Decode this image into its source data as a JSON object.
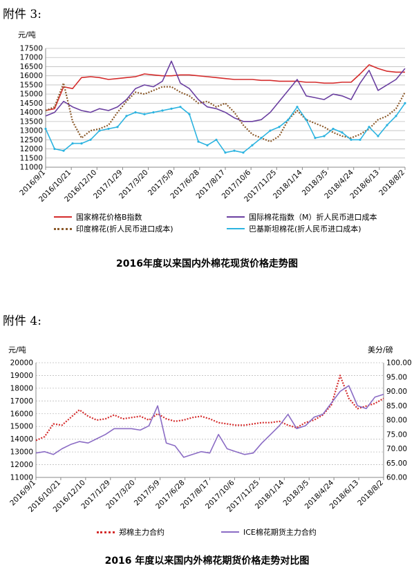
{
  "page": {
    "heading1": "附件 3:",
    "heading2": "附件 4:"
  },
  "chart_data": [
    {
      "type": "line",
      "title": "2016年度以来国内外棉花现货价格走势图",
      "ylabel": "元/吨",
      "ylim": [
        11000,
        17500
      ],
      "yticks": [
        11000,
        11500,
        12000,
        12500,
        13000,
        13500,
        14000,
        14500,
        15000,
        15500,
        16000,
        16500,
        17000,
        17500
      ],
      "x_ticks": [
        "2016/9/1",
        "2016/10/21",
        "2016/12/10",
        "2017/1/29",
        "2017/3/20",
        "2017/5/9",
        "2017/6/28",
        "2017/8/17",
        "2017/10/6",
        "2017/11/25",
        "2018/1/14",
        "2018/3/5",
        "2018/4/24",
        "2018/6/13",
        "2018/8/2"
      ],
      "grid": true,
      "legend_position": "bottom",
      "series": [
        {
          "name": "国家棉花价格B指数",
          "color": "#d42a2a",
          "style": "solid",
          "values": [
            14100,
            14200,
            15400,
            15300,
            15900,
            15950,
            15900,
            15800,
            15850,
            15900,
            15950,
            16100,
            16050,
            16000,
            16000,
            16050,
            16050,
            16000,
            15950,
            15900,
            15850,
            15800,
            15800,
            15800,
            15750,
            15750,
            15700,
            15700,
            15700,
            15650,
            15650,
            15600,
            15600,
            15650,
            15650,
            16100,
            16600,
            16400,
            16250,
            16200,
            16200
          ]
        },
        {
          "name": "国际棉花指数（M）折人民币进口成本",
          "color": "#6a3fa0",
          "style": "solid",
          "values": [
            13800,
            14000,
            14600,
            14300,
            14100,
            14000,
            14200,
            14100,
            14300,
            14700,
            15300,
            15500,
            15400,
            15700,
            16800,
            15600,
            15300,
            14700,
            14300,
            14200,
            14000,
            13700,
            13500,
            13500,
            13600,
            14000,
            14600,
            15200,
            15800,
            14900,
            14800,
            14700,
            15000,
            14900,
            14700,
            15600,
            16300,
            15200,
            15500,
            15800,
            16400
          ]
        },
        {
          "name": "印度棉花(折人民币进口成本)",
          "color": "#8b5a2b",
          "style": "dotted",
          "values": [
            14100,
            14300,
            15600,
            13500,
            12600,
            13000,
            13100,
            13300,
            14000,
            14600,
            15100,
            15000,
            15200,
            15400,
            15400,
            15100,
            14900,
            14500,
            14600,
            14300,
            14500,
            14000,
            13300,
            12800,
            12600,
            12400,
            12700,
            13600,
            14100,
            13600,
            13400,
            13200,
            12900,
            12700,
            12600,
            12800,
            13100,
            13600,
            13800,
            14200,
            15100
          ]
        },
        {
          "name": "巴基斯坦棉花(折人民币进口成本)",
          "color": "#2bb3e0",
          "style": "solid-marker",
          "values": [
            13100,
            12000,
            11900,
            12300,
            12300,
            12500,
            13000,
            13100,
            13200,
            13800,
            14000,
            13900,
            14000,
            14100,
            14200,
            14300,
            13900,
            12400,
            12200,
            12500,
            11800,
            11900,
            11800,
            12200,
            12600,
            13000,
            13200,
            13600,
            14300,
            13600,
            12600,
            12700,
            13100,
            12900,
            12500,
            12500,
            13200,
            12700,
            13300,
            13800,
            14500
          ]
        }
      ]
    },
    {
      "type": "line",
      "title": "2016 年度以来国内外棉花期货价格走势对比图",
      "ylabel": "元/吨",
      "y2label": "美分/磅",
      "ylim": [
        11000,
        20000
      ],
      "y2lim": [
        60,
        100
      ],
      "yticks": [
        11000,
        12000,
        13000,
        14000,
        15000,
        16000,
        17000,
        18000,
        19000,
        20000
      ],
      "y2ticks": [
        "60.00",
        "65.00",
        "70.00",
        "75.00",
        "80.00",
        "85.00",
        "90.00",
        "95.00",
        "100.00"
      ],
      "x_ticks": [
        "2016/9/1",
        "2016/10/21",
        "2016/12/10",
        "2017/1/29",
        "2017/3/20",
        "2017/5/9",
        "2017/6/28",
        "2017/8/17",
        "2017/10/6",
        "2017/11/25",
        "2018/1/14",
        "2018/3/5",
        "2018/4/24",
        "2018/6/13",
        "2018/8/2"
      ],
      "grid": true,
      "legend_position": "bottom",
      "series": [
        {
          "name": "郑棉主力合约",
          "axis": "left",
          "color": "#d42a2a",
          "style": "dotted",
          "values": [
            13900,
            14200,
            15200,
            15100,
            15700,
            16300,
            15800,
            15500,
            15600,
            15900,
            15600,
            15700,
            15800,
            15500,
            16000,
            15600,
            15400,
            15500,
            15700,
            15800,
            15600,
            15300,
            15200,
            15100,
            15100,
            15200,
            15300,
            15300,
            15400,
            15100,
            14900,
            15300,
            15500,
            15900,
            16700,
            19000,
            17200,
            16400,
            16600,
            16800,
            17200
          ]
        },
        {
          "name": "ICE棉花期货主力合约",
          "axis": "right",
          "color": "#8a6bc4",
          "style": "solid",
          "values": [
            68.5,
            69.0,
            68.0,
            70.0,
            71.5,
            72.5,
            72.0,
            73.5,
            75.0,
            77.0,
            77.0,
            77.0,
            76.5,
            78.0,
            85.0,
            72.0,
            71.0,
            67.0,
            68.0,
            69.0,
            68.5,
            75.0,
            70.0,
            69.0,
            68.0,
            68.5,
            72.0,
            75.0,
            78.0,
            82.0,
            77.0,
            78.0,
            81.0,
            82.0,
            86.0,
            90.0,
            92.0,
            85.0,
            84.0,
            88.0,
            89.0
          ]
        }
      ]
    }
  ]
}
